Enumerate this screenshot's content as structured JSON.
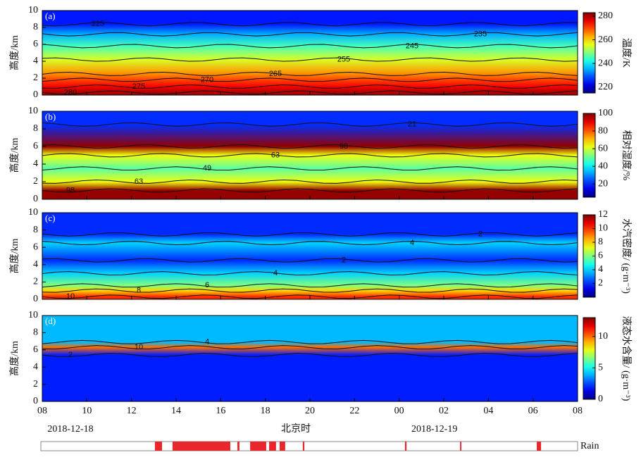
{
  "chart_data": [
    {
      "type": "contour",
      "panel": "(a)",
      "ylabel": "高度/km",
      "ylim": [
        0,
        10
      ],
      "yticks": [
        0,
        2,
        4,
        6,
        8,
        10
      ],
      "colorbar": {
        "label": "温度/K",
        "lim": [
          215,
          283
        ],
        "ticks": [
          220,
          240,
          260,
          280
        ]
      },
      "contours": [
        {
          "level": 280,
          "height": 0.3
        },
        {
          "level": 275,
          "height": 1.0
        },
        {
          "level": 270,
          "height": 1.8
        },
        {
          "level": 265,
          "height": 2.5
        },
        {
          "level": 255,
          "height": 4.2
        },
        {
          "level": 245,
          "height": 5.8
        },
        {
          "level": 235,
          "height": 7.2
        },
        {
          "level": 225,
          "height": 8.4
        }
      ]
    },
    {
      "type": "contour",
      "panel": "(b)",
      "ylabel": "高度/km",
      "ylim": [
        0,
        10
      ],
      "yticks": [
        0,
        2,
        4,
        6,
        8,
        10
      ],
      "colorbar": {
        "label": "相对湿度/%",
        "lim": [
          5,
          100
        ],
        "ticks": [
          20,
          40,
          60,
          80,
          100
        ]
      },
      "contours": [
        {
          "level": 98,
          "height": 1.0
        },
        {
          "level": 63,
          "height": 2.0
        },
        {
          "level": 49,
          "height": 3.5
        },
        {
          "level": 63,
          "height": 5.0
        },
        {
          "level": 98,
          "height": 6.0
        },
        {
          "level": 21,
          "height": 8.5
        }
      ]
    },
    {
      "type": "contour",
      "panel": "(c)",
      "ylabel": "高度/km",
      "ylim": [
        0,
        10
      ],
      "yticks": [
        0,
        2,
        4,
        6,
        8,
        10
      ],
      "colorbar": {
        "label": "水汽密度/ (g·m⁻³)",
        "lim": [
          0,
          12
        ],
        "ticks": [
          2,
          4,
          6,
          8,
          10,
          12
        ]
      },
      "contours": [
        {
          "level": 10,
          "height": 0.3
        },
        {
          "level": 8,
          "height": 1.0
        },
        {
          "level": 6,
          "height": 1.6
        },
        {
          "level": 4,
          "height": 3.0
        },
        {
          "level": 2,
          "height": 4.5
        },
        {
          "level": 4,
          "height": 6.5
        },
        {
          "level": 2,
          "height": 7.5
        }
      ]
    },
    {
      "type": "contour",
      "panel": "(d)",
      "ylabel": "高度/km",
      "ylim": [
        0,
        10
      ],
      "yticks": [
        0,
        2,
        4,
        6,
        8,
        10
      ],
      "colorbar": {
        "label": "液态水含量/ (g·m⁻³)",
        "lim": [
          0,
          13
        ],
        "ticks": [
          0,
          5,
          10
        ]
      },
      "contours": [
        {
          "level": 2,
          "height": 5.4
        },
        {
          "level": 10,
          "height": 6.3
        },
        {
          "level": 4,
          "height": 6.9
        }
      ]
    },
    {
      "type": "timeline",
      "xlabel": "北京时",
      "rain_label": "Rain",
      "xlim": [
        8,
        32
      ],
      "xticks": [
        {
          "value": 8,
          "label": "08"
        },
        10,
        12,
        14,
        16,
        18,
        20,
        22,
        {
          "value": 24,
          "label": "00"
        },
        {
          "value": 26,
          "label": "02"
        },
        {
          "value": 28,
          "label": "04"
        },
        {
          "value": 30,
          "label": "06"
        },
        {
          "value": 32,
          "label": "08"
        }
      ],
      "dates": [
        {
          "value": 8,
          "label": "2018-12-18"
        },
        {
          "value": 24,
          "label": "2018-12-19"
        }
      ],
      "rain": [
        [
          13.05,
          13.37
        ],
        [
          13.84,
          16.43
        ],
        [
          16.75,
          16.84
        ],
        [
          17.32,
          18.04
        ],
        [
          18.17,
          18.48
        ],
        [
          18.64,
          18.89
        ],
        [
          19.68,
          19.75
        ],
        [
          24.26,
          24.33
        ],
        [
          26.73,
          26.79
        ],
        [
          30.17,
          30.36
        ]
      ],
      "rain_color": "#e8262b"
    }
  ]
}
